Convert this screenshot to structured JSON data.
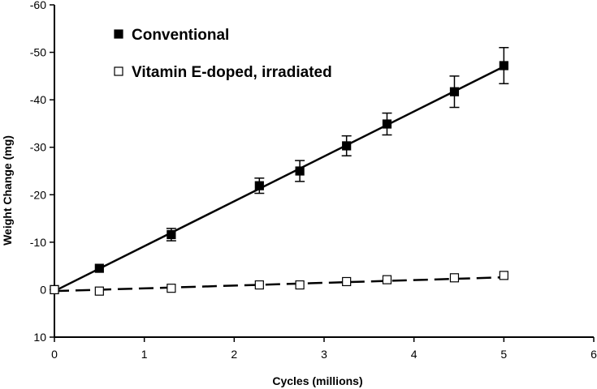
{
  "chart_data": {
    "type": "line",
    "title": "",
    "xlabel": "Cycles (millions)",
    "ylabel": "Weight Change (mg)",
    "xlim": [
      0,
      6
    ],
    "ylim": [
      10,
      -60
    ],
    "y_axis_inverted": true,
    "x_ticks": [
      0,
      1,
      2,
      3,
      4,
      5,
      6
    ],
    "y_ticks": [
      10,
      0,
      -10,
      -20,
      -30,
      -40,
      -50,
      -60
    ],
    "x_tick_labels": [
      "0",
      "1",
      "2",
      "3",
      "4",
      "5",
      "6"
    ],
    "y_tick_labels": [
      "10",
      "0",
      "-10",
      "-20",
      "-30",
      "-40",
      "-50",
      "-60"
    ],
    "grid": false,
    "legend_position": "top-left",
    "series": [
      {
        "name": "Conventional",
        "marker": "filled-square",
        "line_style": "solid",
        "fit_line": {
          "x": [
            0,
            5
          ],
          "y": [
            0.3,
            -47
          ]
        },
        "x": [
          0,
          0.5,
          1.3,
          2.28,
          2.73,
          3.25,
          3.7,
          4.45,
          5.0
        ],
        "y": [
          0,
          -4.5,
          -11.6,
          -21.9,
          -25.0,
          -30.3,
          -34.9,
          -41.7,
          -47.2
        ],
        "error": [
          0,
          0,
          1.3,
          1.6,
          2.2,
          2.1,
          2.3,
          3.3,
          3.8
        ]
      },
      {
        "name": "Vitamin E-doped, irradiated",
        "marker": "open-square",
        "line_style": "dashed",
        "fit_line": {
          "x": [
            0,
            5
          ],
          "y": [
            0.3,
            -2.6
          ]
        },
        "x": [
          0,
          0.5,
          1.3,
          2.28,
          2.73,
          3.25,
          3.7,
          4.45,
          5.0
        ],
        "y": [
          0,
          0.3,
          -0.3,
          -1.0,
          -1.0,
          -1.7,
          -2.1,
          -2.5,
          -3.0
        ],
        "error": [
          0,
          0,
          0,
          0,
          0,
          0,
          0,
          0,
          0
        ]
      }
    ]
  }
}
